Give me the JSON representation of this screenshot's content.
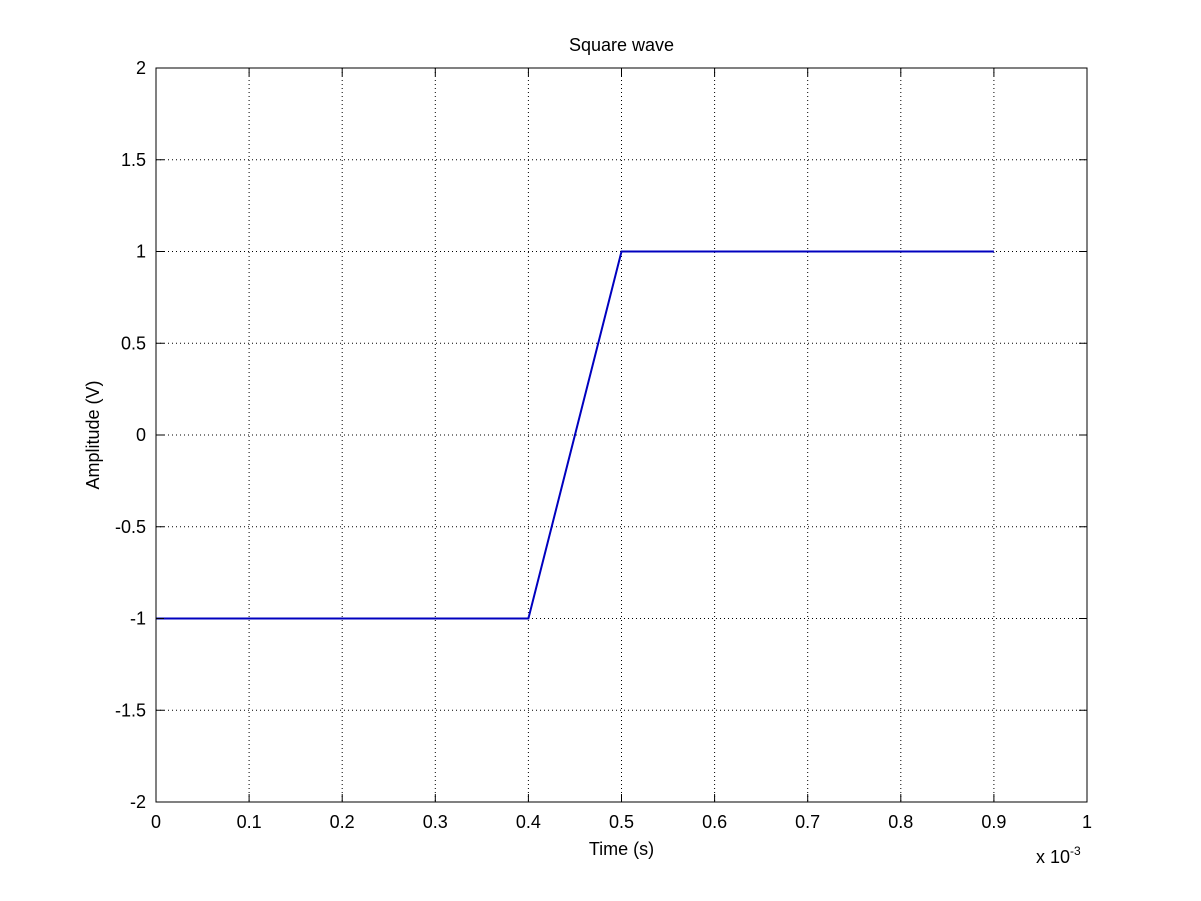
{
  "chart_data": {
    "type": "line",
    "title": "Square wave",
    "xlabel": "Time (s)",
    "ylabel": "Amplitude (V)",
    "x_multiplier_label": "x 10",
    "x_multiplier_exponent": "-3",
    "xlim": [
      0,
      1
    ],
    "ylim": [
      -2,
      2
    ],
    "x_ticks": [
      0,
      0.1,
      0.2,
      0.3,
      0.4,
      0.5,
      0.6,
      0.7,
      0.8,
      0.9,
      1
    ],
    "x_tick_labels": [
      "0",
      "0.1",
      "0.2",
      "0.3",
      "0.4",
      "0.5",
      "0.6",
      "0.7",
      "0.8",
      "0.9",
      "1"
    ],
    "y_ticks": [
      -2,
      -1.5,
      -1,
      -0.5,
      0,
      0.5,
      1,
      1.5,
      2
    ],
    "y_tick_labels": [
      "-2",
      "-1.5",
      "-1",
      "-0.5",
      "0",
      "0.5",
      "1",
      "1.5",
      "2"
    ],
    "grid": true,
    "series": [
      {
        "color": "#0000bf",
        "x": [
          0,
          0.4,
          0.5,
          0.9
        ],
        "y": [
          -1,
          -1,
          1,
          1
        ]
      }
    ]
  }
}
